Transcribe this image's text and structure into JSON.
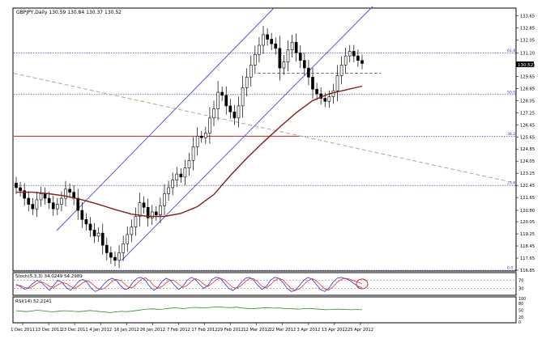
{
  "colors": {
    "up": "#ffffff",
    "down": "#000000",
    "wick": "#000000",
    "ma": "#8b1a1a",
    "channel": "#4a4ae0",
    "fib": "#3333cc",
    "fib_line": "#2a2aa0",
    "resistance": "#cc2222",
    "trendline": "#b0a890",
    "stoch_k": "#3030d0",
    "stoch_d": "#dd3030",
    "rsi": "#2a8a2a",
    "grid": "#9999cc",
    "current_price_bg": "#000000"
  },
  "chart_data": [
    {
      "type": "candlestick",
      "header": "GBPJPY,Daily  130.59 130.84 130.37 130.52",
      "ylim": [
        116.85,
        134.05
      ],
      "y_ticks": [
        "133.65",
        "132.85",
        "132.05",
        "131.20",
        "130.40",
        "129.65",
        "128.85",
        "128.05",
        "127.25",
        "126.45",
        "125.65",
        "124.85",
        "124.05",
        "123.25",
        "122.45",
        "121.65",
        "120.80",
        "120.05",
        "119.25",
        "118.45",
        "117.65",
        "116.85"
      ],
      "x_tick_labels": [
        "1 Dec 2011",
        "13 Dec 2011",
        "23 Dec 2011",
        "4 Jan 2012",
        "16 Jan 2012",
        "26 Jan 2012",
        "7 Feb 2012",
        "17 Feb 2012",
        "29 Feb 2012",
        "12 Mar 2012",
        "22 Mar 2012",
        "3 Apr 2012",
        "13 Apr 2012",
        "25 Apr 2012"
      ],
      "current_price": "130.52",
      "fib_levels": [
        {
          "label": "61.8",
          "value": 131.2
        },
        {
          "label": "50.0",
          "value": 128.45
        },
        {
          "label": "38.2",
          "value": 125.7
        },
        {
          "label": "23.6",
          "value": 122.45
        },
        {
          "label": "0.0",
          "value": 116.85
        }
      ],
      "close": [
        122.3,
        122.1,
        121.6,
        121.2,
        120.9,
        121.5,
        121.9,
        121.6,
        121.3,
        120.9,
        121.2,
        121.6,
        122.2,
        122.0,
        121.6,
        120.8,
        120.2,
        119.9,
        119.5,
        119.1,
        119.3,
        118.5,
        118.0,
        117.7,
        117.5,
        118.0,
        118.6,
        119.2,
        119.7,
        120.4,
        121.3,
        121.0,
        120.3,
        120.7,
        120.5,
        121.1,
        121.9,
        122.3,
        122.8,
        123.2,
        123.0,
        123.6,
        124.1,
        125.0,
        125.7,
        125.6,
        125.9,
        126.9,
        127.5,
        128.6,
        128.4,
        127.7,
        127.3,
        126.9,
        127.7,
        128.9,
        129.6,
        130.4,
        131.1,
        131.7,
        132.4,
        132.1,
        131.8,
        131.5,
        130.2,
        130.6,
        131.4,
        131.9,
        131.2,
        130.7,
        130.2,
        129.6,
        128.8,
        128.5,
        128.2,
        128.0,
        128.3,
        128.7,
        129.7,
        130.4,
        131.0,
        131.3,
        131.0,
        130.7,
        130.5
      ],
      "ma": [
        {
          "i": 0,
          "v": 122.0
        },
        {
          "i": 4,
          "v": 122.0
        },
        {
          "i": 8,
          "v": 121.9
        },
        {
          "i": 12,
          "v": 121.75
        },
        {
          "i": 16,
          "v": 121.5
        },
        {
          "i": 20,
          "v": 121.2
        },
        {
          "i": 24,
          "v": 120.85
        },
        {
          "i": 28,
          "v": 120.55
        },
        {
          "i": 32,
          "v": 120.4
        },
        {
          "i": 36,
          "v": 120.4
        },
        {
          "i": 40,
          "v": 120.6
        },
        {
          "i": 44,
          "v": 121.05
        },
        {
          "i": 48,
          "v": 121.85
        },
        {
          "i": 52,
          "v": 123.1
        },
        {
          "i": 56,
          "v": 124.25
        },
        {
          "i": 60,
          "v": 125.3
        },
        {
          "i": 64,
          "v": 126.3
        },
        {
          "i": 68,
          "v": 127.25
        },
        {
          "i": 72,
          "v": 128.05
        },
        {
          "i": 76,
          "v": 128.5
        },
        {
          "i": 80,
          "v": 128.75
        },
        {
          "i": 84,
          "v": 129.0
        }
      ]
    },
    {
      "type": "line",
      "label": "Stoch(5,3,3) 34.0249 54.2989",
      "ylim": [
        0,
        100
      ],
      "y_ticks": [
        "70",
        "30"
      ],
      "series": [
        {
          "name": "%K",
          "values": [
            50,
            40,
            25,
            35,
            55,
            70,
            60,
            40,
            20,
            45,
            70,
            60,
            35,
            20,
            40,
            65,
            75,
            60,
            30,
            15,
            25,
            50,
            70,
            80,
            70,
            45,
            25,
            30,
            60,
            80,
            85,
            70,
            40,
            20,
            35,
            65,
            80,
            70,
            45,
            25,
            40,
            70,
            85,
            75,
            50,
            30,
            45,
            75,
            85,
            80,
            55,
            30,
            20,
            35,
            60,
            80,
            85,
            70,
            45,
            25,
            40,
            70,
            85,
            80,
            60,
            30,
            15,
            20,
            45,
            70,
            85,
            75,
            50,
            25,
            15,
            30,
            60,
            80,
            85,
            78,
            70,
            55,
            40,
            34
          ]
        },
        {
          "name": "%D",
          "values": [
            45,
            45,
            35,
            30,
            40,
            55,
            62,
            55,
            40,
            35,
            48,
            58,
            55,
            40,
            30,
            42,
            58,
            68,
            58,
            38,
            25,
            28,
            45,
            65,
            75,
            70,
            52,
            35,
            35,
            55,
            75,
            82,
            68,
            45,
            30,
            40,
            58,
            72,
            68,
            50,
            35,
            45,
            65,
            78,
            70,
            50,
            40,
            55,
            72,
            80,
            72,
            52,
            35,
            30,
            45,
            65,
            78,
            78,
            62,
            40,
            32,
            48,
            68,
            80,
            72,
            50,
            30,
            20,
            28,
            48,
            68,
            78,
            68,
            48,
            28,
            22,
            38,
            60,
            75,
            80,
            76,
            68,
            60,
            54
          ]
        }
      ]
    },
    {
      "type": "line",
      "label": "RSI(14) 52.2141",
      "ylim": [
        0,
        100
      ],
      "y_ticks": [
        "100",
        "80",
        "50",
        "20",
        "0"
      ],
      "series": [
        {
          "name": "RSI",
          "values": [
            48,
            46,
            44,
            47,
            50,
            48,
            45,
            43,
            46,
            48,
            47,
            45,
            44,
            46,
            49,
            47,
            44,
            42,
            40,
            43,
            45,
            44,
            46,
            49,
            52,
            55,
            56,
            54,
            55,
            58,
            60,
            59,
            57,
            60,
            62,
            61,
            60,
            62,
            64,
            63,
            62,
            61,
            63,
            60,
            58,
            57,
            58,
            60,
            61,
            59,
            60,
            58,
            57,
            56,
            55,
            57,
            58,
            56,
            54,
            52,
            53,
            55,
            54,
            53,
            52,
            53,
            52
          ]
        }
      ]
    }
  ]
}
